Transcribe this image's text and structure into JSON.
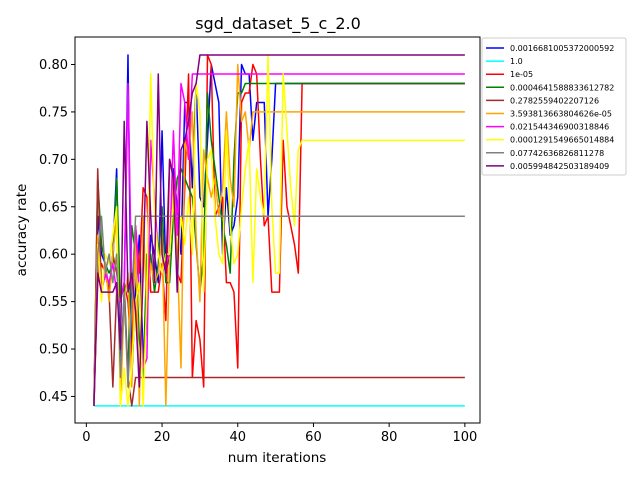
{
  "chart_data": {
    "type": "line",
    "title": "sgd_dataset_5_c_2.0",
    "xlabel": "num iterations",
    "ylabel": "accuracy rate",
    "xlim": [
      -3,
      104
    ],
    "ylim": [
      0.422,
      0.829
    ],
    "xticks": [
      0,
      20,
      40,
      60,
      80,
      100
    ],
    "yticks": [
      0.45,
      0.5,
      0.55,
      0.6,
      0.65,
      0.7,
      0.75,
      0.8
    ],
    "ytick_labels": [
      "0.45",
      "0.50",
      "0.55",
      "0.60",
      "0.65",
      "0.70",
      "0.75",
      "0.80"
    ],
    "grid": false,
    "legend_position": "outside-top-right",
    "series": [
      {
        "name": "0.0016681005372000592",
        "color": "#0000ff",
        "x": [
          2,
          3,
          4,
          5,
          6,
          7,
          8,
          9,
          10,
          11,
          12,
          13,
          14,
          15,
          16,
          17,
          18,
          19,
          20,
          21,
          22,
          23,
          24,
          25,
          26,
          27,
          28,
          29,
          30,
          31,
          32,
          33,
          34,
          35,
          36,
          37,
          38,
          39,
          40,
          41,
          42,
          43,
          44,
          45,
          46,
          47,
          48,
          49,
          50,
          100
        ],
        "y": [
          0.44,
          0.64,
          0.6,
          0.59,
          0.56,
          0.6,
          0.69,
          0.48,
          0.56,
          0.81,
          0.47,
          0.56,
          0.62,
          0.49,
          0.53,
          0.62,
          0.6,
          0.57,
          0.73,
          0.58,
          0.6,
          0.69,
          0.65,
          0.6,
          0.76,
          0.76,
          0.67,
          0.78,
          0.66,
          0.65,
          0.72,
          0.8,
          0.78,
          0.76,
          0.6,
          0.67,
          0.62,
          0.63,
          0.66,
          0.8,
          0.79,
          0.79,
          0.72,
          0.76,
          0.76,
          0.76,
          0.64,
          0.7,
          0.78,
          0.78
        ]
      },
      {
        "name": "1.0",
        "color": "#00ffff",
        "x": [
          2,
          3,
          100
        ],
        "y": [
          0.44,
          0.44,
          0.44
        ]
      },
      {
        "name": "1e-05",
        "color": "#ff0000",
        "x": [
          2,
          3,
          4,
          5,
          6,
          7,
          8,
          9,
          10,
          11,
          12,
          13,
          14,
          15,
          16,
          17,
          18,
          19,
          20,
          21,
          22,
          23,
          24,
          25,
          26,
          27,
          28,
          29,
          30,
          31,
          32,
          33,
          34,
          35,
          36,
          37,
          38,
          39,
          40,
          41,
          42,
          43,
          44,
          45,
          46,
          47,
          48,
          49,
          50,
          51,
          52,
          53,
          54,
          55,
          56,
          57,
          100
        ],
        "y": [
          0.44,
          0.57,
          0.59,
          0.58,
          0.56,
          0.6,
          0.58,
          0.55,
          0.57,
          0.55,
          0.49,
          0.63,
          0.58,
          0.67,
          0.66,
          0.56,
          0.56,
          0.56,
          0.59,
          0.53,
          0.7,
          0.68,
          0.58,
          0.57,
          0.67,
          0.79,
          0.47,
          0.53,
          0.51,
          0.46,
          0.81,
          0.8,
          0.64,
          0.65,
          0.66,
          0.57,
          0.57,
          0.56,
          0.48,
          0.76,
          0.77,
          0.77,
          0.8,
          0.79,
          0.7,
          0.63,
          0.64,
          0.56,
          0.56,
          0.56,
          0.72,
          0.65,
          0.63,
          0.61,
          0.58,
          0.78,
          0.78
        ]
      },
      {
        "name": "0.0004641588833612782",
        "color": "#008000",
        "x": [
          2,
          3,
          4,
          5,
          6,
          7,
          8,
          9,
          10,
          11,
          12,
          13,
          14,
          15,
          16,
          17,
          18,
          19,
          20,
          21,
          22,
          23,
          24,
          25,
          26,
          27,
          28,
          29,
          30,
          31,
          32,
          33,
          34,
          35,
          36,
          37,
          38,
          39,
          40,
          41,
          42,
          43,
          100
        ],
        "y": [
          0.44,
          0.68,
          0.61,
          0.59,
          0.58,
          0.59,
          0.68,
          0.55,
          0.57,
          0.47,
          0.63,
          0.6,
          0.51,
          0.47,
          0.6,
          0.6,
          0.56,
          0.59,
          0.65,
          0.57,
          0.57,
          0.64,
          0.68,
          0.69,
          0.68,
          0.67,
          0.66,
          0.61,
          0.56,
          0.6,
          0.77,
          0.72,
          0.69,
          0.66,
          0.63,
          0.61,
          0.58,
          0.7,
          0.77,
          0.77,
          0.78,
          0.78,
          0.78
        ]
      },
      {
        "name": "0.2782559402207126",
        "color": "#a52a2a",
        "x": [
          2,
          3,
          4,
          5,
          6,
          7,
          8,
          9,
          10,
          11,
          12,
          13,
          100
        ],
        "y": [
          0.44,
          0.69,
          0.56,
          0.58,
          0.56,
          0.46,
          0.56,
          0.56,
          0.56,
          0.47,
          0.44,
          0.47,
          0.47
        ]
      },
      {
        "name": "3.593813663804626e-05",
        "color": "#ffa500",
        "x": [
          2,
          3,
          4,
          5,
          6,
          7,
          8,
          9,
          10,
          11,
          12,
          13,
          14,
          15,
          16,
          17,
          18,
          19,
          20,
          21,
          22,
          23,
          24,
          25,
          26,
          27,
          28,
          29,
          30,
          31,
          32,
          33,
          34,
          35,
          36,
          37,
          38,
          39,
          40,
          41,
          42,
          43,
          44,
          100
        ],
        "y": [
          0.44,
          0.62,
          0.56,
          0.59,
          0.55,
          0.6,
          0.64,
          0.44,
          0.55,
          0.58,
          0.46,
          0.62,
          0.44,
          0.64,
          0.54,
          0.59,
          0.57,
          0.58,
          0.62,
          0.44,
          0.6,
          0.68,
          0.6,
          0.48,
          0.72,
          0.7,
          0.75,
          0.62,
          0.55,
          0.71,
          0.68,
          0.66,
          0.68,
          0.64,
          0.67,
          0.75,
          0.68,
          0.65,
          0.8,
          0.74,
          0.75,
          0.71,
          0.75,
          0.75
        ]
      },
      {
        "name": "0.021544346900318846",
        "color": "#ff00ff",
        "x": [
          2,
          3,
          4,
          5,
          6,
          7,
          8,
          9,
          10,
          11,
          12,
          13,
          14,
          15,
          16,
          17,
          18,
          19,
          20,
          21,
          22,
          23,
          24,
          25,
          26,
          27,
          28,
          29,
          30,
          31,
          100
        ],
        "y": [
          0.44,
          0.59,
          0.56,
          0.58,
          0.57,
          0.59,
          0.56,
          0.55,
          0.57,
          0.78,
          0.56,
          0.63,
          0.56,
          0.48,
          0.49,
          0.72,
          0.66,
          0.6,
          0.58,
          0.59,
          0.6,
          0.73,
          0.62,
          0.78,
          0.76,
          0.7,
          0.79,
          0.79,
          0.79,
          0.79,
          0.79
        ]
      },
      {
        "name": "0.0001291549665014884",
        "color": "#ffff00",
        "x": [
          2,
          3,
          4,
          5,
          6,
          7,
          8,
          9,
          10,
          11,
          12,
          13,
          14,
          15,
          16,
          17,
          18,
          19,
          20,
          21,
          22,
          23,
          24,
          25,
          26,
          27,
          28,
          29,
          30,
          31,
          32,
          33,
          34,
          35,
          36,
          37,
          38,
          39,
          40,
          41,
          42,
          43,
          44,
          45,
          46,
          47,
          48,
          49,
          50,
          51,
          52,
          53,
          54,
          55,
          56,
          57,
          58,
          100
        ],
        "y": [
          0.44,
          0.61,
          0.55,
          0.6,
          0.59,
          0.62,
          0.65,
          0.44,
          0.48,
          0.44,
          0.48,
          0.55,
          0.57,
          0.44,
          0.56,
          0.79,
          0.64,
          0.6,
          0.58,
          0.6,
          0.6,
          0.66,
          0.57,
          0.64,
          0.61,
          0.66,
          0.6,
          0.78,
          0.75,
          0.56,
          0.7,
          0.71,
          0.64,
          0.6,
          0.59,
          0.73,
          0.63,
          0.59,
          0.6,
          0.65,
          0.69,
          0.72,
          0.57,
          0.69,
          0.66,
          0.64,
          0.81,
          0.65,
          0.58,
          0.58,
          0.79,
          0.73,
          0.67,
          0.63,
          0.71,
          0.72,
          0.72,
          0.72
        ]
      },
      {
        "name": "0.07742636826811278",
        "color": "#808080",
        "x": [
          2,
          3,
          4,
          5,
          6,
          7,
          8,
          9,
          10,
          11,
          12,
          13,
          14,
          100
        ],
        "y": [
          0.44,
          0.6,
          0.64,
          0.58,
          0.6,
          0.57,
          0.6,
          0.47,
          0.56,
          0.46,
          0.55,
          0.64,
          0.64,
          0.64
        ]
      },
      {
        "name": "0.005994842503189409",
        "color": "#800080",
        "x": [
          2,
          3,
          4,
          5,
          6,
          7,
          8,
          9,
          10,
          11,
          12,
          13,
          14,
          15,
          16,
          17,
          18,
          19,
          20,
          21,
          22,
          23,
          24,
          25,
          26,
          27,
          28,
          29,
          30,
          31,
          100
        ],
        "y": [
          0.44,
          0.58,
          0.56,
          0.56,
          0.56,
          0.56,
          0.57,
          0.5,
          0.74,
          0.56,
          0.58,
          0.54,
          0.46,
          0.58,
          0.74,
          0.64,
          0.57,
          0.79,
          0.6,
          0.58,
          0.7,
          0.68,
          0.56,
          0.71,
          0.72,
          0.74,
          0.77,
          0.78,
          0.81,
          0.81,
          0.81
        ]
      }
    ]
  }
}
